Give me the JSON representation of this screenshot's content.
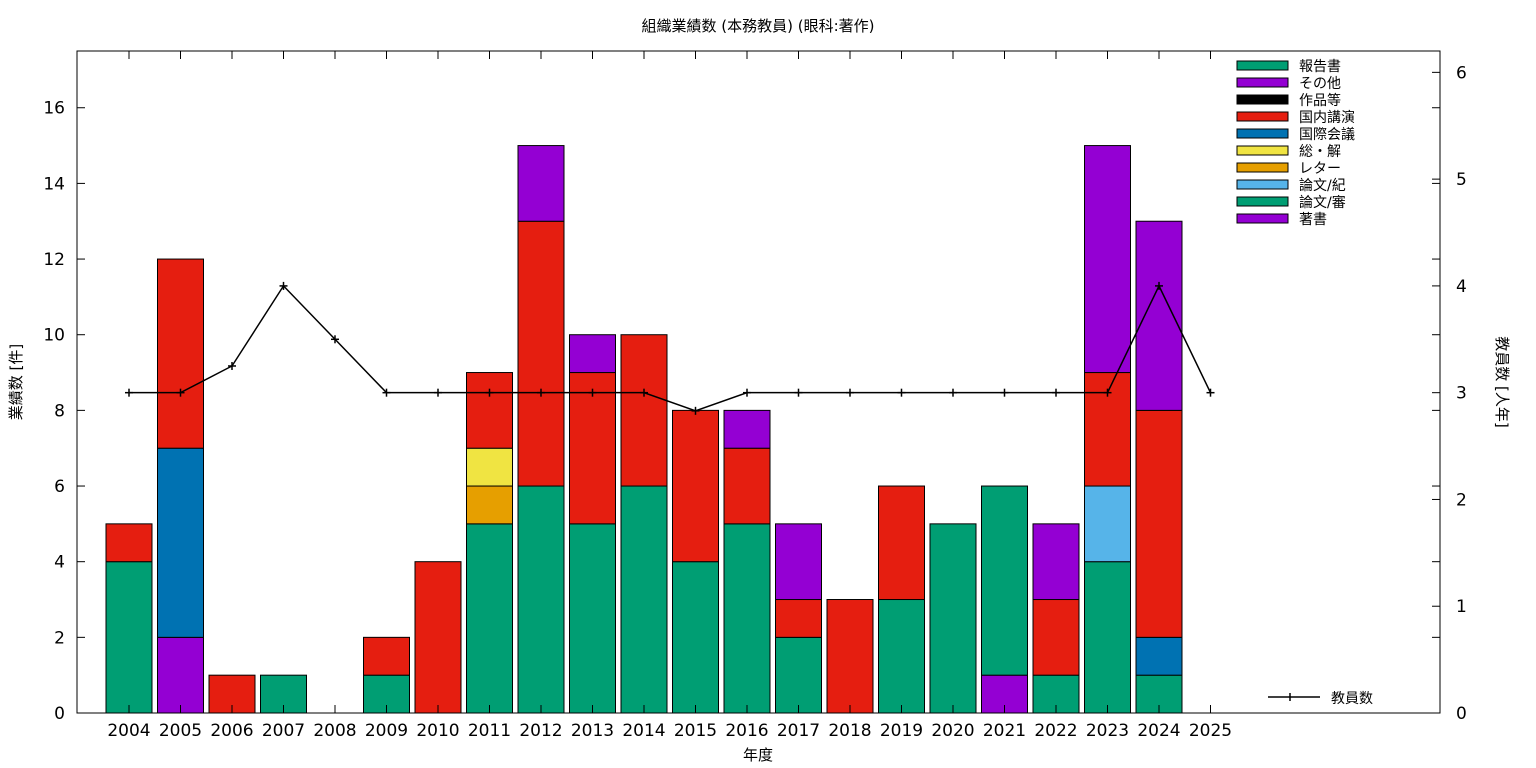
{
  "chart_data": {
    "type": "bar",
    "stacked": true,
    "title": "組織業績数 (本務教員) (眼科:著作)",
    "xlabel": "年度",
    "ylabel": "業績数 [件]",
    "y2label": "教員数 [人年]",
    "ylim": [
      0,
      17.5
    ],
    "y2lim": [
      0,
      6.2
    ],
    "yticks": [
      0,
      2,
      4,
      6,
      8,
      10,
      12,
      14,
      16
    ],
    "y2ticks": [
      0,
      1,
      2,
      3,
      4,
      5,
      6
    ],
    "legend_position": "top-right",
    "categories": [
      "2004",
      "2005",
      "2006",
      "2007",
      "2008",
      "2009",
      "2010",
      "2011",
      "2012",
      "2013",
      "2014",
      "2015",
      "2016",
      "2017",
      "2018",
      "2019",
      "2020",
      "2021",
      "2022",
      "2023",
      "2024",
      "2025"
    ],
    "series": [
      {
        "name": "著書",
        "color": "#9400d3",
        "values": [
          0,
          2,
          0,
          0,
          0,
          0,
          0,
          0,
          0,
          0,
          0,
          0,
          0,
          0,
          0,
          0,
          0,
          1,
          0,
          0,
          0,
          0
        ]
      },
      {
        "name": "論文/審",
        "color": "#009e73",
        "values": [
          4,
          0,
          0,
          1,
          0,
          1,
          0,
          5,
          6,
          5,
          6,
          4,
          5,
          2,
          0,
          3,
          5,
          5,
          1,
          4,
          1,
          0
        ]
      },
      {
        "name": "論文/紀",
        "color": "#56b4e9",
        "values": [
          0,
          0,
          0,
          0,
          0,
          0,
          0,
          0,
          0,
          0,
          0,
          0,
          0,
          0,
          0,
          0,
          0,
          0,
          0,
          2,
          0,
          0
        ]
      },
      {
        "name": "レター",
        "color": "#e69f00",
        "values": [
          0,
          0,
          0,
          0,
          0,
          0,
          0,
          1,
          0,
          0,
          0,
          0,
          0,
          0,
          0,
          0,
          0,
          0,
          0,
          0,
          0,
          0
        ]
      },
      {
        "name": "総・解",
        "color": "#f0e442",
        "values": [
          0,
          0,
          0,
          0,
          0,
          0,
          0,
          1,
          0,
          0,
          0,
          0,
          0,
          0,
          0,
          0,
          0,
          0,
          0,
          0,
          0,
          0
        ]
      },
      {
        "name": "国際会議",
        "color": "#0072b2",
        "values": [
          0,
          5,
          0,
          0,
          0,
          0,
          0,
          0,
          0,
          0,
          0,
          0,
          0,
          0,
          0,
          0,
          0,
          0,
          0,
          0,
          1,
          0
        ]
      },
      {
        "name": "国内講演",
        "color": "#e51e10",
        "values": [
          1,
          5,
          1,
          0,
          0,
          1,
          4,
          2,
          7,
          4,
          4,
          4,
          2,
          1,
          3,
          3,
          0,
          0,
          2,
          3,
          6,
          0
        ]
      },
      {
        "name": "作品等",
        "color": "#000000",
        "values": [
          0,
          0,
          0,
          0,
          0,
          0,
          0,
          0,
          0,
          0,
          0,
          0,
          0,
          0,
          0,
          0,
          0,
          0,
          0,
          0,
          0,
          0
        ]
      },
      {
        "name": "その他",
        "color": "#9400d3",
        "values": [
          0,
          0,
          0,
          0,
          0,
          0,
          0,
          0,
          2,
          1,
          0,
          0,
          1,
          2,
          0,
          0,
          0,
          0,
          2,
          6,
          5,
          0
        ]
      },
      {
        "name": "報告書",
        "color": "#009e73",
        "values": [
          0,
          0,
          0,
          0,
          0,
          0,
          0,
          0,
          0,
          0,
          0,
          0,
          0,
          0,
          0,
          0,
          0,
          0,
          0,
          0,
          0,
          0
        ]
      }
    ],
    "line_series": {
      "name": "教員数",
      "color": "#000000",
      "axis": "y2",
      "values": [
        3,
        3,
        3.25,
        4,
        3.5,
        3,
        3,
        3,
        3,
        3,
        3,
        2.83,
        3,
        3,
        3,
        3,
        3,
        3,
        3,
        3,
        4,
        3
      ]
    }
  }
}
